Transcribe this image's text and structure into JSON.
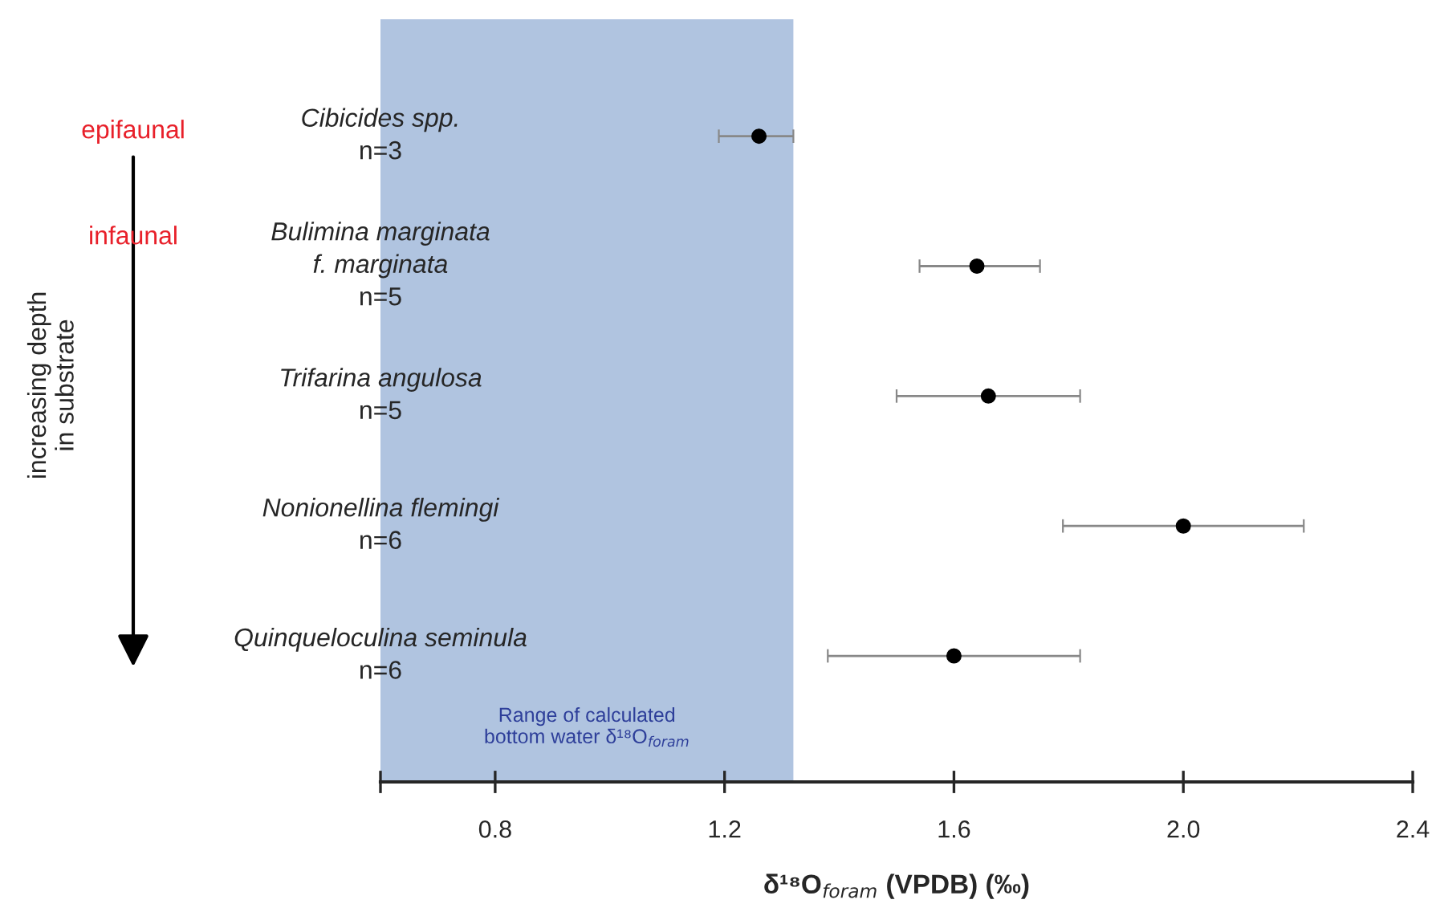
{
  "chart_data": {
    "type": "scatter",
    "orientation": "horizontal",
    "categories": [
      "Cibicides spp.\nn=3",
      "Bulimina marginata\nf. marginata\nn=5",
      "Trifarina angulosa\nn=5",
      "Nonionellina flemingi\nn=6",
      "Quinqueloculina seminula\nn=6"
    ],
    "values": [
      1.26,
      1.64,
      1.66,
      2.0,
      1.6
    ],
    "errors": [
      [
        1.19,
        1.32
      ],
      [
        1.54,
        1.75
      ],
      [
        1.5,
        1.82
      ],
      [
        1.79,
        2.21
      ],
      [
        1.38,
        1.82
      ]
    ],
    "color": "#000000",
    "marker": "circle",
    "xlim": [
      0.6,
      2.4
    ],
    "xticks": [
      {
        "value": 0.6,
        "label": null
      },
      0.8,
      1.2,
      1.6,
      {
        "value": 2.0,
        "label": "2.0"
      },
      2.4
    ],
    "xlabel": "δ¹⁸O$_{foram}$ (VPDB) (‰)",
    "bands": [
      {
        "axis": "x",
        "from": 0.6,
        "to": 1.32,
        "label": "Range of calculated\nbottom water δ¹⁸O$_{foram}$",
        "color": "#b0c4e0"
      }
    ],
    "annotations": [
      "epifaunal",
      "infaunal",
      "increasing depth\nin substrate"
    ],
    "grid": false
  }
}
